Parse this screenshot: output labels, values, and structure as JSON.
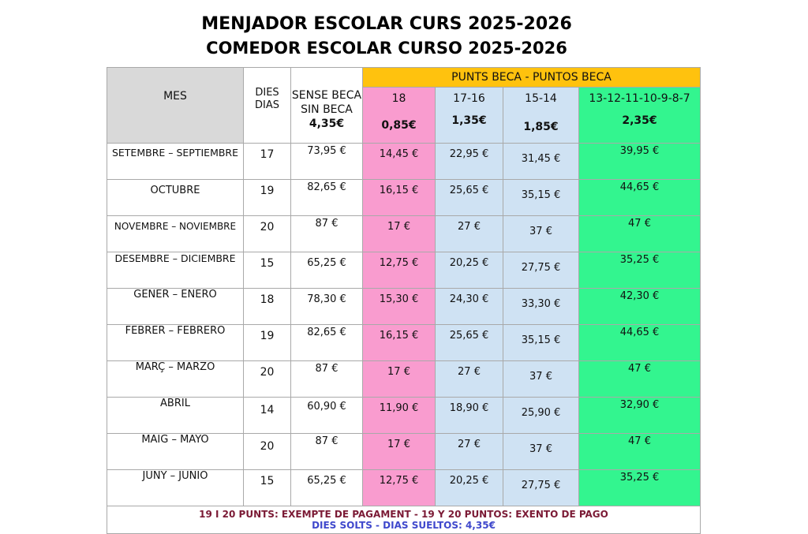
{
  "title_ca": "MENJADOR ESCOLAR CURS 2025-2026",
  "title_es": "COMEDOR ESCOLAR CURSO 2025-2026",
  "headers": {
    "mes": "MES",
    "dies_ca": "DIES",
    "dies_es": "DIAS",
    "sense_ca": "SENSE BECA",
    "sense_es": "SIN BECA",
    "sense_price": "4,35€",
    "banner": "PUNTS BECA - PUNTOS BECA",
    "pts": [
      {
        "label": "18",
        "price": "0,85€"
      },
      {
        "label": "17-16",
        "price": "1,35€"
      },
      {
        "label": "15-14",
        "price": "1,85€"
      },
      {
        "label": "13-12-11-10-9-8-7",
        "price": "2,35€"
      }
    ]
  },
  "rows": [
    {
      "mes": "SETEMBRE – SEPTIEMBRE",
      "dies": "17",
      "sense": "73,95 €",
      "p18": "14,45 €",
      "p17": "22,95 €",
      "p15": "31,45 €",
      "p13": "39,95 €"
    },
    {
      "mes": "OCTUBRE",
      "dies": "19",
      "sense": "82,65 €",
      "p18": "16,15 €",
      "p17": "25,65 €",
      "p15": "35,15 €",
      "p13": "44,65 €"
    },
    {
      "mes": "NOVEMBRE – NOVIEMBRE",
      "dies": "20",
      "sense": "87 €",
      "p18": "17 €",
      "p17": "27 €",
      "p15": "37 €",
      "p13": "47 €"
    },
    {
      "mes": "DESEMBRE – DICIEMBRE",
      "dies": "15",
      "sense": "65,25 €",
      "p18": "12,75 €",
      "p17": "20,25 €",
      "p15": "27,75 €",
      "p13": "35,25 €"
    },
    {
      "mes": "GENER – ENERO",
      "dies": "18",
      "sense": "78,30 €",
      "p18": "15,30 €",
      "p17": "24,30 €",
      "p15": "33,30 €",
      "p13": "42,30 €"
    },
    {
      "mes": "FEBRER – FEBRERO",
      "dies": "19",
      "sense": "82,65 €",
      "p18": "16,15 €",
      "p17": "25,65 €",
      "p15": "35,15 €",
      "p13": "44,65 €"
    },
    {
      "mes": "MARÇ – MARZO",
      "dies": "20",
      "sense": "87 €",
      "p18": "17 €",
      "p17": "27 €",
      "p15": "37 €",
      "p13": "47 €"
    },
    {
      "mes": "ABRIL",
      "dies": "14",
      "sense": "60,90 €",
      "p18": "11,90 €",
      "p17": "18,90 €",
      "p15": "25,90 €",
      "p13": "32,90 €"
    },
    {
      "mes": "MAIG – MAYO",
      "dies": "20",
      "sense": "87 €",
      "p18": "17 €",
      "p17": "27 €",
      "p15": "37 €",
      "p13": "47 €"
    },
    {
      "mes": "JUNY – JUNIO",
      "dies": "15",
      "sense": "65,25 €",
      "p18": "12,75 €",
      "p17": "20,25 €",
      "p15": "27,75 €",
      "p13": "35,25 €"
    }
  ],
  "footer_1": "19 I 20 PUNTS: EXEMPTE DE PAGAMENT - 19 Y 20 PUNTOS: EXENTO DE PAGO",
  "footer_2": "DIES SOLTS - DIAS SUELTOS: 4,35€",
  "colors": {
    "pink": "#f99ccf",
    "blue": "#cfe2f3",
    "green": "#33f58f",
    "yellow": "#ffc20e",
    "grey": "#d9d9d9",
    "footer_1": "#7b1a35",
    "footer_2": "#3f48cc"
  }
}
